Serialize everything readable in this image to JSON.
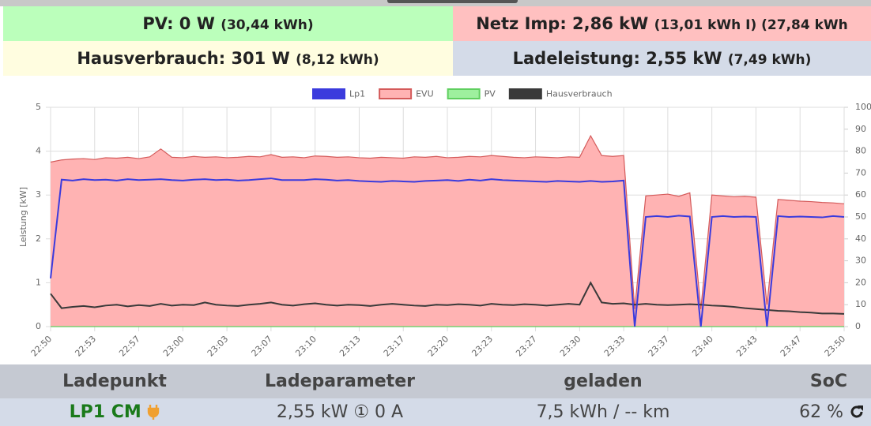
{
  "status": [
    {
      "label": "PV: 0 W",
      "detail": "(30,44 kWh)"
    },
    {
      "label": "Netz Imp: 2,86 kW",
      "detail": "(13,01 kWh I) (27,84 kWh"
    },
    {
      "label": "Hausverbrauch: 301 W",
      "detail": "(8,12 kWh)"
    },
    {
      "label": "Ladeleistung: 2,55 kW",
      "detail": "(7,49 kWh)"
    }
  ],
  "chart_data": {
    "type": "line",
    "y_label": "Leistung [kW]",
    "categories": [
      "22:50",
      null,
      null,
      null,
      "22:53",
      null,
      null,
      null,
      "22:57",
      null,
      null,
      null,
      "23:00",
      null,
      null,
      null,
      "23:03",
      null,
      null,
      null,
      "23:07",
      null,
      null,
      null,
      "23:10",
      null,
      null,
      null,
      "23:13",
      null,
      null,
      null,
      "23:17",
      null,
      null,
      null,
      "23:20",
      null,
      null,
      null,
      "23:23",
      null,
      null,
      null,
      "23:27",
      null,
      null,
      null,
      "23:30",
      null,
      null,
      null,
      "23:33",
      null,
      null,
      null,
      "23:37",
      null,
      null,
      null,
      "23:40",
      null,
      null,
      null,
      "23:43",
      null,
      null,
      null,
      "23:47",
      null,
      null,
      null,
      "23:50"
    ],
    "series": [
      {
        "name": "Lp1",
        "color": "#3b3bdd",
        "fill": false,
        "values": [
          1.1,
          3.35,
          3.33,
          3.36,
          3.34,
          3.35,
          3.33,
          3.36,
          3.34,
          3.35,
          3.36,
          3.34,
          3.33,
          3.35,
          3.36,
          3.34,
          3.35,
          3.33,
          3.34,
          3.36,
          3.38,
          3.34,
          3.34,
          3.34,
          3.36,
          3.35,
          3.33,
          3.34,
          3.32,
          3.31,
          3.3,
          3.32,
          3.31,
          3.3,
          3.32,
          3.33,
          3.34,
          3.32,
          3.35,
          3.33,
          3.36,
          3.34,
          3.33,
          3.32,
          3.31,
          3.3,
          3.32,
          3.31,
          3.3,
          3.32,
          3.3,
          3.31,
          3.33,
          0,
          2.5,
          2.52,
          2.5,
          2.53,
          2.51,
          0,
          2.5,
          2.52,
          2.5,
          2.51,
          2.5,
          0,
          2.52,
          2.5,
          2.51,
          2.5,
          2.49,
          2.52,
          2.5
        ]
      },
      {
        "name": "EVU",
        "color": "#ffb3b3",
        "line_color": "#d45a5a",
        "fill": true,
        "values": [
          3.75,
          3.8,
          3.82,
          3.83,
          3.81,
          3.85,
          3.84,
          3.86,
          3.83,
          3.87,
          4.05,
          3.86,
          3.85,
          3.88,
          3.86,
          3.87,
          3.85,
          3.86,
          3.88,
          3.87,
          3.92,
          3.86,
          3.87,
          3.85,
          3.89,
          3.88,
          3.86,
          3.87,
          3.85,
          3.84,
          3.86,
          3.85,
          3.84,
          3.87,
          3.86,
          3.88,
          3.85,
          3.86,
          3.88,
          3.87,
          3.9,
          3.88,
          3.86,
          3.85,
          3.87,
          3.86,
          3.85,
          3.87,
          3.86,
          4.35,
          3.9,
          3.88,
          3.9,
          0.4,
          2.98,
          3.0,
          3.02,
          2.97,
          3.05,
          0.4,
          3.0,
          2.98,
          2.96,
          2.97,
          2.95,
          0.5,
          2.9,
          2.88,
          2.86,
          2.85,
          2.83,
          2.82,
          2.8
        ]
      },
      {
        "name": "PV",
        "color": "#9ef09e",
        "line_color": "#5fcf5f",
        "fill": false,
        "values": [
          0,
          0,
          0,
          0,
          0,
          0,
          0,
          0,
          0,
          0,
          0,
          0,
          0,
          0,
          0,
          0,
          0,
          0,
          0,
          0,
          0,
          0,
          0,
          0,
          0,
          0,
          0,
          0,
          0,
          0,
          0,
          0,
          0,
          0,
          0,
          0,
          0,
          0,
          0,
          0,
          0,
          0,
          0,
          0,
          0,
          0,
          0,
          0,
          0,
          0,
          0,
          0,
          0,
          0,
          0,
          0,
          0,
          0,
          0,
          0,
          0,
          0,
          0,
          0,
          0,
          0,
          0,
          0,
          0,
          0,
          0,
          0,
          0
        ]
      },
      {
        "name": "Hausverbrauch",
        "color": "#3a3a3a",
        "fill": false,
        "values": [
          0.75,
          0.42,
          0.45,
          0.47,
          0.44,
          0.48,
          0.5,
          0.46,
          0.49,
          0.47,
          0.52,
          0.48,
          0.5,
          0.49,
          0.55,
          0.5,
          0.48,
          0.47,
          0.5,
          0.52,
          0.55,
          0.5,
          0.48,
          0.51,
          0.53,
          0.5,
          0.48,
          0.5,
          0.49,
          0.47,
          0.5,
          0.52,
          0.5,
          0.48,
          0.47,
          0.5,
          0.49,
          0.51,
          0.5,
          0.48,
          0.52,
          0.5,
          0.49,
          0.51,
          0.5,
          0.48,
          0.5,
          0.52,
          0.5,
          1.0,
          0.55,
          0.52,
          0.53,
          0.5,
          0.52,
          0.5,
          0.49,
          0.5,
          0.51,
          0.5,
          0.48,
          0.47,
          0.45,
          0.42,
          0.4,
          0.38,
          0.36,
          0.35,
          0.33,
          0.32,
          0.3,
          0.3,
          0.29
        ]
      }
    ],
    "ylim": [
      0,
      5
    ],
    "yticks": [
      0,
      1,
      2,
      3,
      4,
      5
    ],
    "y2lim": [
      0,
      100
    ],
    "y2ticks": [
      0,
      10,
      20,
      30,
      40,
      50,
      60,
      70,
      80,
      90,
      100
    ],
    "grid": true,
    "legend": "top"
  },
  "table": {
    "headers": [
      "Ladepunkt",
      "Ladeparameter",
      "geladen",
      "SoC"
    ],
    "rows": [
      [
        "LP1 CM",
        "2,55 kW ① 0 A",
        "7,5 kWh / -- km",
        "62 %"
      ]
    ]
  }
}
